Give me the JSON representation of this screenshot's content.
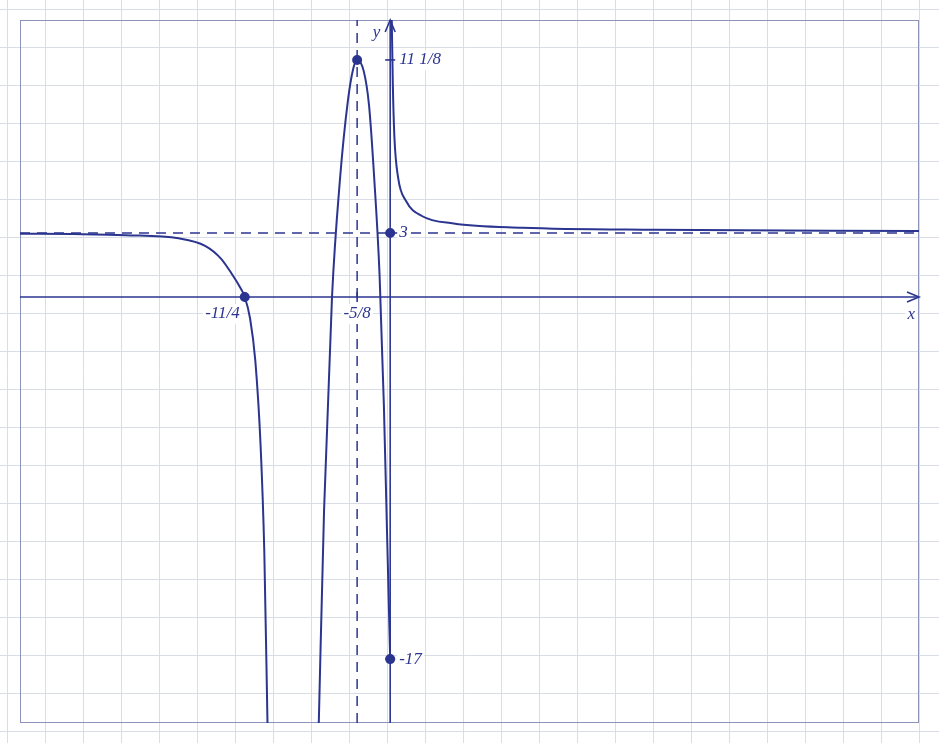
{
  "chart_data": {
    "type": "line",
    "x_label": "x",
    "y_label": "y",
    "xlim": [
      -7,
      10
    ],
    "ylim": [
      -20,
      13
    ],
    "xticks": [
      {
        "value": -2.75,
        "label": "-11/4"
      },
      {
        "value": -0.625,
        "label": "-5/8"
      }
    ],
    "yticks": [
      -17,
      3,
      {
        "value": 11.125,
        "label": "11 1/8"
      }
    ],
    "grid": true,
    "series": [
      {
        "color": "#2b3590",
        "line_style": "solid",
        "x": [
          -7,
          -6,
          -5,
          -4,
          -3.5,
          -3.2,
          -3,
          -2.85,
          -2.75,
          -2.65,
          -2.55,
          -2.45,
          -2.38,
          -2.32
        ],
        "values": [
          2.97,
          2.95,
          2.9,
          2.75,
          2.4,
          1.8,
          1.1,
          0.5,
          0,
          -1,
          -3,
          -7,
          -12,
          -20
        ]
      },
      {
        "color": "#2b3590",
        "line_style": "solid",
        "x": [
          -1.35,
          -1.25,
          -1.1,
          -0.95,
          -0.8,
          -0.7,
          -0.625,
          -0.5,
          -0.4,
          -0.3,
          -0.2,
          -0.12,
          -0.06,
          0
        ],
        "values": [
          -20,
          -10,
          0,
          5.5,
          9.2,
          10.7,
          11.125,
          10.6,
          9,
          5.5,
          1,
          -5,
          -11,
          -17
        ]
      },
      {
        "color": "#2b3590",
        "line_style": "solid",
        "x": [
          0.03,
          0.05,
          0.08,
          0.15,
          0.3,
          0.6,
          1.2,
          2.5,
          5,
          10
        ],
        "values": [
          13,
          10,
          7.5,
          5.6,
          4.5,
          3.8,
          3.45,
          3.25,
          3.15,
          3.1
        ]
      },
      {
        "color": "#2b3590",
        "line_style": "dashed",
        "x": [
          -7,
          10
        ],
        "values": [
          3,
          3
        ]
      },
      {
        "color": "#2b3590",
        "line_style": "dashed",
        "x": [
          -0.625,
          -0.625
        ],
        "values": [
          -20,
          13
        ]
      },
      {
        "color": "#2b3590",
        "type": "scatter",
        "marker": "circle",
        "x": [
          -2.75,
          -0.625,
          0,
          0
        ],
        "values": [
          0,
          11.125,
          3,
          -17
        ]
      }
    ]
  }
}
